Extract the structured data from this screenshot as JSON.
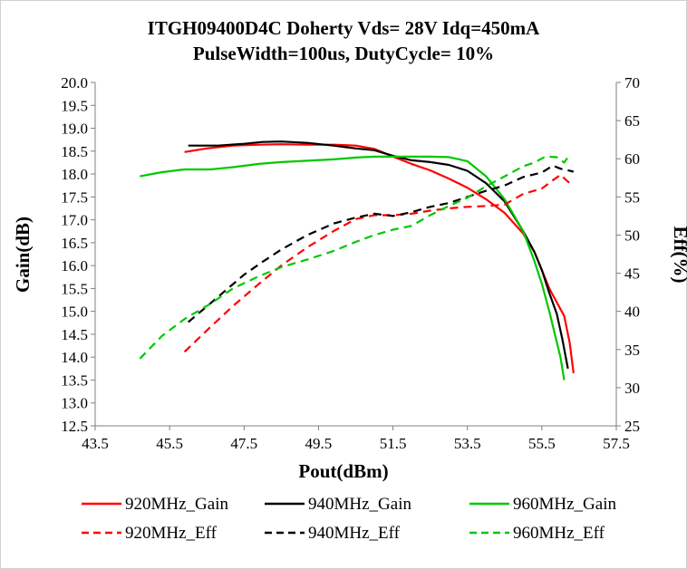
{
  "chart_data": {
    "type": "line",
    "title": "ITGH09400D4C  Doherty Vds= 28V Idq=450mA",
    "subtitle": "PulseWidth=100us, DutyCycle= 10%",
    "xlabel": "Pout(dBm)",
    "ylabel": "Gain(dB)",
    "y2label": "Eff(%)",
    "xlim": [
      43.5,
      57.5
    ],
    "ylim": [
      12.5,
      20.0
    ],
    "y2lim": [
      25,
      70
    ],
    "x_ticks": [
      "43.5",
      "45.5",
      "47.5",
      "49.5",
      "51.5",
      "53.5",
      "55.5",
      "57.5"
    ],
    "y_ticks": [
      "12.5",
      "13.0",
      "13.5",
      "14.0",
      "14.5",
      "15.0",
      "15.5",
      "16.0",
      "16.5",
      "17.0",
      "17.5",
      "18.0",
      "18.5",
      "19.0",
      "19.5",
      "20.0"
    ],
    "y2_ticks": [
      "25",
      "30",
      "35",
      "40",
      "45",
      "50",
      "55",
      "60",
      "65",
      "70"
    ],
    "grid": false,
    "legend_position": "bottom",
    "series": [
      {
        "name": "920MHz_Gain",
        "axis": "left",
        "color": "#ff0000",
        "dash": "solid",
        "x": [
          45.9,
          46.5,
          47.2,
          47.9,
          48.5,
          49.2,
          49.9,
          50.5,
          51.0,
          51.5,
          52.0,
          52.5,
          53.0,
          53.5,
          54.0,
          54.5,
          55.0,
          55.3,
          55.5,
          55.7,
          55.9,
          56.1,
          56.25,
          56.35
        ],
        "y": [
          18.48,
          18.56,
          18.62,
          18.64,
          18.65,
          18.64,
          18.64,
          18.62,
          18.55,
          18.38,
          18.22,
          18.08,
          17.9,
          17.7,
          17.45,
          17.15,
          16.7,
          16.3,
          15.9,
          15.5,
          15.2,
          14.9,
          14.3,
          13.65
        ]
      },
      {
        "name": "940MHz_Gain",
        "axis": "left",
        "color": "#000000",
        "dash": "solid",
        "x": [
          46.0,
          46.8,
          47.5,
          48.0,
          48.5,
          49.2,
          49.9,
          50.5,
          51.0,
          51.5,
          52.0,
          52.5,
          53.0,
          53.5,
          54.0,
          54.5,
          55.0,
          55.3,
          55.5,
          55.7,
          55.9,
          56.05,
          56.2
        ],
        "y": [
          18.62,
          18.62,
          18.66,
          18.7,
          18.71,
          18.68,
          18.62,
          18.56,
          18.52,
          18.4,
          18.3,
          18.26,
          18.2,
          18.07,
          17.8,
          17.4,
          16.75,
          16.3,
          15.9,
          15.4,
          14.95,
          14.4,
          13.75
        ]
      },
      {
        "name": "960MHz_Gain",
        "axis": "left",
        "color": "#00c800",
        "dash": "solid",
        "x": [
          44.7,
          45.3,
          45.9,
          46.6,
          47.2,
          47.9,
          48.5,
          49.2,
          49.9,
          50.5,
          51.0,
          51.5,
          52.0,
          52.5,
          53.0,
          53.5,
          54.0,
          54.5,
          55.0,
          55.3,
          55.5,
          55.7,
          55.85,
          56.0,
          56.1
        ],
        "y": [
          17.95,
          18.04,
          18.1,
          18.1,
          18.15,
          18.22,
          18.26,
          18.29,
          18.32,
          18.36,
          18.38,
          18.38,
          18.38,
          18.38,
          18.37,
          18.28,
          17.95,
          17.45,
          16.75,
          16.1,
          15.6,
          15.0,
          14.5,
          14.0,
          13.5
        ]
      },
      {
        "name": "920MHz_Eff",
        "axis": "right",
        "color": "#ff0000",
        "dash": "dashed",
        "x": [
          45.9,
          46.5,
          47.2,
          47.9,
          48.5,
          49.2,
          49.9,
          50.5,
          51.0,
          51.5,
          52.0,
          52.5,
          53.0,
          53.5,
          54.0,
          54.5,
          55.0,
          55.5,
          55.8,
          56.0,
          56.2,
          56.35
        ],
        "y": [
          34.7,
          37.5,
          40.7,
          43.6,
          46.0,
          48.4,
          50.5,
          52.1,
          52.6,
          52.6,
          52.8,
          53.2,
          53.5,
          53.7,
          53.8,
          54.0,
          55.4,
          56.1,
          57.2,
          57.9,
          57.0,
          56.6
        ]
      },
      {
        "name": "940MHz_Eff",
        "axis": "right",
        "color": "#000000",
        "dash": "dashed",
        "x": [
          46.0,
          46.8,
          47.5,
          48.0,
          48.5,
          49.2,
          49.9,
          50.5,
          51.0,
          51.5,
          52.0,
          52.5,
          53.0,
          53.5,
          54.0,
          54.5,
          55.0,
          55.5,
          55.8,
          56.0,
          56.2,
          56.35
        ],
        "y": [
          38.6,
          41.9,
          44.8,
          46.5,
          48.1,
          50.0,
          51.5,
          52.3,
          52.8,
          52.5,
          53.0,
          53.7,
          54.2,
          55.0,
          55.8,
          56.5,
          57.6,
          58.2,
          59.1,
          58.7,
          58.5,
          58.3
        ]
      },
      {
        "name": "960MHz_Eff",
        "axis": "right",
        "color": "#00c800",
        "dash": "dashed",
        "x": [
          44.7,
          45.3,
          45.9,
          46.6,
          47.2,
          47.9,
          48.5,
          49.2,
          49.9,
          50.5,
          51.0,
          51.5,
          52.0,
          52.5,
          53.0,
          53.5,
          54.0,
          54.5,
          55.0,
          55.3,
          55.6,
          55.9,
          56.1,
          56.2
        ],
        "y": [
          33.8,
          36.8,
          39.0,
          41.0,
          43.0,
          44.6,
          45.8,
          46.8,
          47.9,
          49.1,
          50.0,
          50.7,
          51.2,
          52.6,
          53.8,
          54.9,
          56.4,
          57.7,
          59.0,
          59.5,
          60.3,
          60.2,
          59.5,
          60.2
        ]
      }
    ]
  }
}
